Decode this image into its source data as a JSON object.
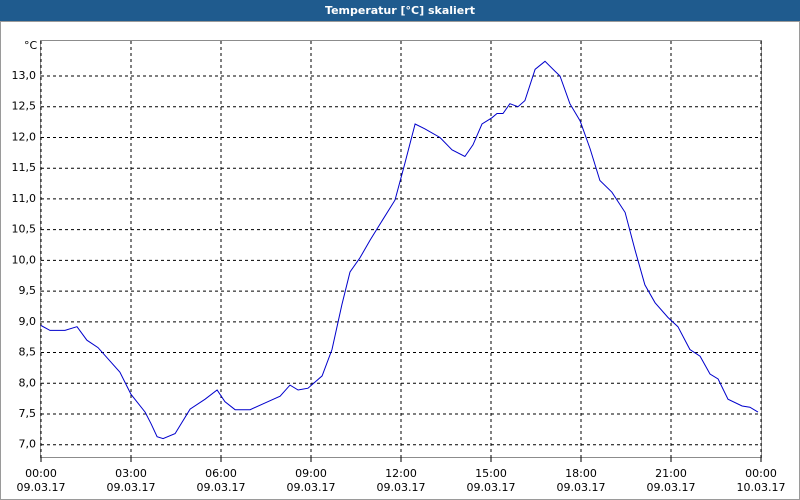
{
  "chart_data": {
    "type": "line",
    "title": "Temperatur [°C] skaliert",
    "ylabel": "°C",
    "color": "#0000cc",
    "grid": true,
    "x": [
      0,
      0.3,
      0.8,
      1.2,
      1.53,
      1.9,
      2.3,
      2.63,
      3.0,
      3.47,
      3.67,
      3.87,
      4.07,
      4.47,
      4.97,
      5.47,
      5.87,
      6.13,
      6.47,
      6.97,
      7.47,
      7.97,
      8.3,
      8.57,
      8.9,
      9.37,
      9.7,
      10.03,
      10.3,
      10.63,
      10.97,
      11.3,
      11.8,
      12.13,
      12.47,
      12.8,
      13.3,
      13.7,
      14.13,
      14.4,
      14.7,
      15.03,
      15.2,
      15.4,
      15.63,
      15.9,
      16.13,
      16.47,
      16.8,
      17.13,
      17.3,
      17.63,
      17.97,
      18.3,
      18.63,
      19.03,
      19.47,
      19.8,
      20.13,
      20.47,
      20.9,
      21.23,
      21.63,
      21.97,
      22.3,
      22.57,
      22.9,
      23.37,
      23.63,
      23.9
    ],
    "values": [
      8.94,
      8.86,
      8.86,
      8.92,
      8.7,
      8.58,
      8.36,
      8.18,
      7.82,
      7.53,
      7.34,
      7.13,
      7.1,
      7.18,
      7.58,
      7.74,
      7.89,
      7.7,
      7.57,
      7.57,
      7.68,
      7.79,
      7.97,
      7.89,
      7.92,
      8.12,
      8.55,
      9.28,
      9.81,
      10.04,
      10.33,
      10.59,
      10.98,
      11.58,
      12.22,
      12.14,
      12.0,
      11.8,
      11.69,
      11.88,
      12.22,
      12.32,
      12.39,
      12.39,
      12.55,
      12.5,
      12.6,
      13.11,
      13.24,
      13.08,
      13.0,
      12.55,
      12.27,
      11.82,
      11.3,
      11.11,
      10.78,
      10.17,
      9.6,
      9.31,
      9.07,
      8.92,
      8.55,
      8.44,
      8.15,
      8.07,
      7.74,
      7.63,
      7.61,
      7.53
    ],
    "xlim": [
      0,
      24
    ],
    "ylim": [
      6.8,
      13.57
    ],
    "xticks": [
      {
        "value": 0,
        "label": "00:00\n09.03.17"
      },
      {
        "value": 3,
        "label": "03:00\n09.03.17"
      },
      {
        "value": 6,
        "label": "06:00\n09.03.17"
      },
      {
        "value": 9,
        "label": "09:00\n09.03.17"
      },
      {
        "value": 12,
        "label": "12:00\n09.03.17"
      },
      {
        "value": 15,
        "label": "15:00\n09.03.17"
      },
      {
        "value": 18,
        "label": "18:00\n09.03.17"
      },
      {
        "value": 21,
        "label": "21:00\n09.03.17"
      },
      {
        "value": 24,
        "label": "00:00\n10.03.17"
      }
    ],
    "yticks": [
      {
        "value": 7,
        "label": "7,0"
      },
      {
        "value": 7.5,
        "label": "7,5"
      },
      {
        "value": 8,
        "label": "8,0"
      },
      {
        "value": 8.5,
        "label": "8,5"
      },
      {
        "value": 9,
        "label": "9,0"
      },
      {
        "value": 9.5,
        "label": "9,5"
      },
      {
        "value": 10,
        "label": "10,0"
      },
      {
        "value": 10.5,
        "label": "10,5"
      },
      {
        "value": 11,
        "label": "11,0"
      },
      {
        "value": 11.5,
        "label": "11,5"
      },
      {
        "value": 12,
        "label": "12,0"
      },
      {
        "value": 12.5,
        "label": "12,5"
      },
      {
        "value": 13,
        "label": "13,0"
      }
    ]
  }
}
